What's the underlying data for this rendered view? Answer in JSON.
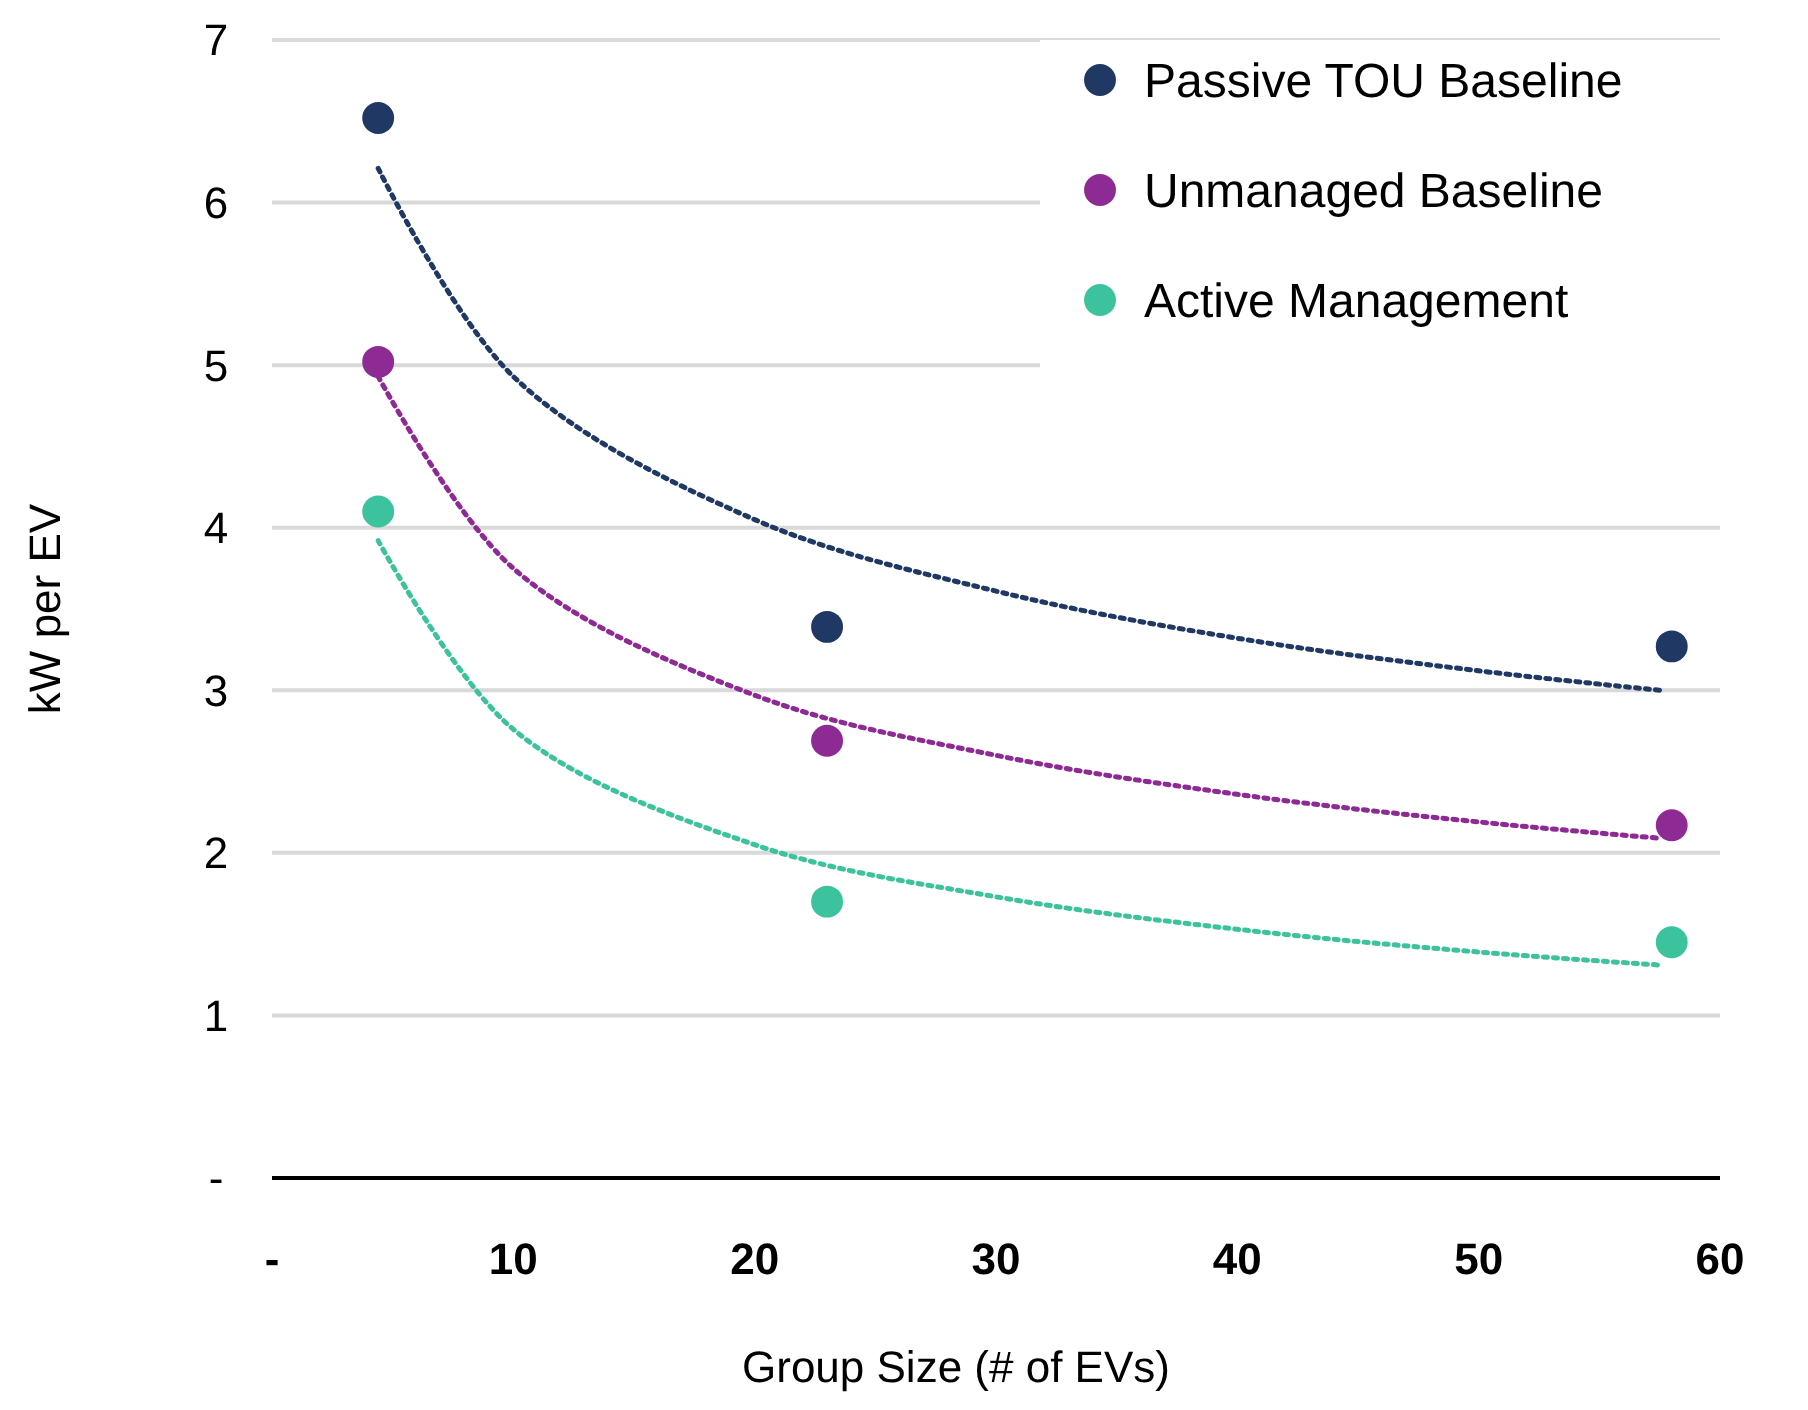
{
  "chart_data": {
    "type": "scatter",
    "xlabel": "Group Size (# of EVs)",
    "ylabel": "kW per EV",
    "xlim": [
      0,
      60
    ],
    "ylim": [
      0,
      7
    ],
    "xticks": [
      {
        "value": 0,
        "label": "-"
      },
      10,
      20,
      30,
      40,
      50,
      60
    ],
    "yticks": [
      {
        "value": 0,
        "label": "-"
      },
      1,
      2,
      3,
      4,
      5,
      6,
      7
    ],
    "grid": "y",
    "legend": "top right",
    "marker": "circle",
    "series": [
      {
        "name": "Passive TOU Baseline",
        "color": "#1f3864",
        "x": [
          4.4,
          23,
          58
        ],
        "values": [
          6.52,
          3.39,
          3.27
        ]
      },
      {
        "name": "Unmanaged Baseline",
        "color": "#8e2a94",
        "x": [
          4.4,
          23,
          58
        ],
        "values": [
          5.02,
          2.69,
          2.17
        ]
      },
      {
        "name": "Active Management",
        "color": "#3cc29c",
        "x": [
          4.4,
          23,
          58
        ],
        "values": [
          4.1,
          1.7,
          1.45
        ]
      },
      {
        "type": "line",
        "color": "#1f3864",
        "line_style": "dotted",
        "marker": "none",
        "x": [
          4.4,
          10,
          20,
          30,
          40,
          50,
          57.5
        ],
        "values": [
          6.21,
          4.93,
          4.05,
          3.61,
          3.32,
          3.12,
          3.0
        ]
      },
      {
        "type": "line",
        "color": "#8e2a94",
        "line_style": "dotted",
        "marker": "none",
        "x": [
          4.4,
          10,
          20,
          30,
          40,
          50,
          57.5
        ],
        "values": [
          4.93,
          3.75,
          2.97,
          2.6,
          2.36,
          2.19,
          2.09
        ]
      },
      {
        "type": "line",
        "color": "#3cc29c",
        "line_style": "dotted",
        "marker": "none",
        "x": [
          4.4,
          10,
          20,
          30,
          40,
          50,
          57.5
        ],
        "values": [
          3.92,
          2.76,
          2.05,
          1.73,
          1.53,
          1.39,
          1.31
        ]
      }
    ]
  }
}
